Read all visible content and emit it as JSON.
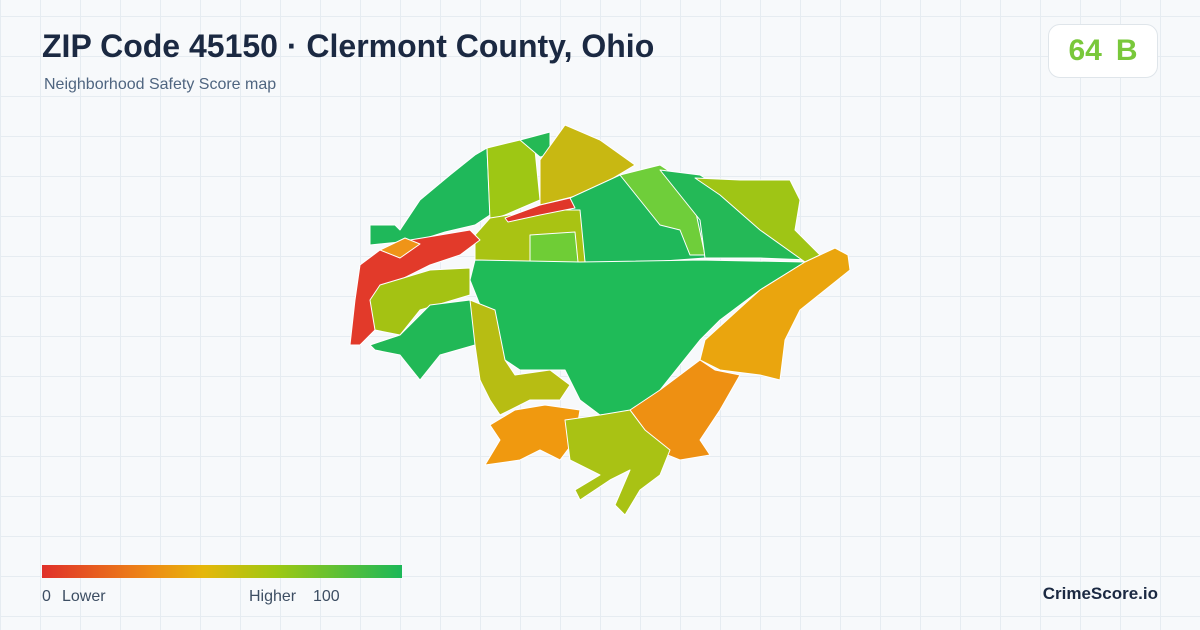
{
  "header": {
    "title": "ZIP Code 45150 · Clermont County, Ohio",
    "subtitle": "Neighborhood Safety Score map"
  },
  "score": {
    "value": 64,
    "grade": "B"
  },
  "legend": {
    "min": 0,
    "low_label": "Lower",
    "high_label": "Higher",
    "max": 100
  },
  "brand": "CrimeScore.io"
}
